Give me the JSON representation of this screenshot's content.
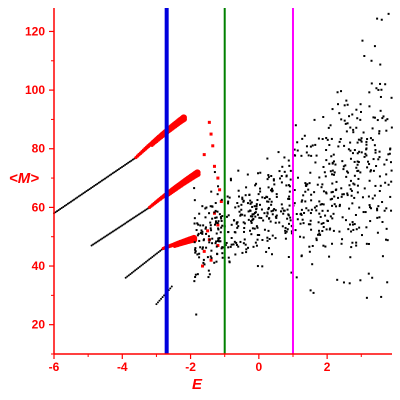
{
  "chart_data": {
    "type": "scatter",
    "title": "",
    "xlabel": "E",
    "ylabel": "<M>",
    "xlim": [
      -6,
      3.9
    ],
    "ylim": [
      10,
      128
    ],
    "x_ticks": [
      -6,
      -4,
      -2,
      0,
      2
    ],
    "y_ticks": [
      20,
      40,
      60,
      80,
      100,
      120
    ],
    "grid": false,
    "colors": {
      "axis": "#ff0000",
      "dots_left": "#000000",
      "dots_red": "#ff0000",
      "dots_right": "#000000",
      "line_blue": "#0000dd",
      "line_green": "#008000",
      "line_magenta": "#ff00ff"
    },
    "vertical_lines": [
      {
        "x": -2.7,
        "color": "#0000dd"
      },
      {
        "x": -1.0,
        "color": "#008000"
      },
      {
        "x": 1.0,
        "color": "#ff00ff"
      }
    ],
    "branches": [
      {
        "x_start": -6.0,
        "x_end": -3.6,
        "y_start": 58,
        "y_end": 77,
        "color": "black"
      },
      {
        "x_start": -3.6,
        "x_end": -2.2,
        "y_start": 77,
        "y_end": 92.5,
        "color": "red"
      },
      {
        "x_start": -4.9,
        "x_end": -3.2,
        "y_start": 47,
        "y_end": 60,
        "color": "black"
      },
      {
        "x_start": -3.2,
        "x_end": -1.8,
        "y_start": 60,
        "y_end": 73.5,
        "color": "red"
      },
      {
        "x_start": -3.9,
        "x_end": -2.8,
        "y_start": 36,
        "y_end": 46,
        "color": "black"
      },
      {
        "x_start": -2.8,
        "x_end": -1.9,
        "y_start": 46,
        "y_end": 50,
        "color": "red"
      },
      {
        "x_start": -3.0,
        "x_end": -2.55,
        "y_start": 27,
        "y_end": 33,
        "color": "black"
      }
    ],
    "red_falloff_points": [
      [
        -1.45,
        89
      ],
      [
        -1.4,
        85
      ],
      [
        -1.35,
        81
      ],
      [
        -1.6,
        78
      ],
      [
        -1.3,
        74
      ],
      [
        -1.2,
        70
      ],
      [
        -1.15,
        66
      ],
      [
        -1.1,
        62
      ],
      [
        -1.3,
        58
      ],
      [
        -1.2,
        54
      ],
      [
        -1.5,
        52
      ],
      [
        -1.45,
        49
      ],
      [
        -1.2,
        47
      ],
      [
        -1.6,
        45
      ],
      [
        -1.4,
        42
      ],
      [
        -1.65,
        40
      ]
    ],
    "scatter_region": {
      "x_min": -1.9,
      "x_max": 3.9,
      "y_min": 10,
      "y_max": 128
    }
  }
}
